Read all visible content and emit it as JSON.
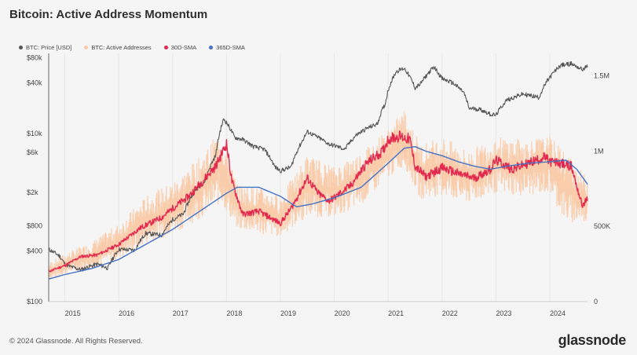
{
  "chart_data": {
    "type": "line",
    "title": "Bitcoin: Active Address Momentum",
    "legend": [
      {
        "name": "BTC: Price [USD]",
        "color": "#555555"
      },
      {
        "name": "BTC: Active Addresses",
        "color": "#f9c9a4"
      },
      {
        "name": "30D-SMA",
        "color": "#e2284f"
      },
      {
        "name": "365D-SMA",
        "color": "#4472c4"
      }
    ],
    "x_range": [
      2014.7,
      2024.7
    ],
    "x_ticks": [
      {
        "v": 2015,
        "label": "2015"
      },
      {
        "v": 2016,
        "label": "2016"
      },
      {
        "v": 2017,
        "label": "2017"
      },
      {
        "v": 2018,
        "label": "2018"
      },
      {
        "v": 2019,
        "label": "2019"
      },
      {
        "v": 2020,
        "label": "2020"
      },
      {
        "v": 2021,
        "label": "2021"
      },
      {
        "v": 2022,
        "label": "2022"
      },
      {
        "v": 2023,
        "label": "2023"
      },
      {
        "v": 2024,
        "label": "2024"
      }
    ],
    "y_left": {
      "scale": "log",
      "range": [
        100,
        90000
      ],
      "ticks": [
        {
          "v": 80000,
          "label": "$80k"
        },
        {
          "v": 40000,
          "label": "$40k"
        },
        {
          "v": 10000,
          "label": "$10k"
        },
        {
          "v": 6000,
          "label": "$6k"
        },
        {
          "v": 2000,
          "label": "$2k"
        },
        {
          "v": 800,
          "label": "$800"
        },
        {
          "v": 400,
          "label": "$400"
        },
        {
          "v": 100,
          "label": "$100"
        }
      ]
    },
    "y_right": {
      "scale": "linear",
      "range": [
        0,
        1650000
      ],
      "ticks": [
        {
          "v": 1500000,
          "label": "1.5M"
        },
        {
          "v": 1000000,
          "label": "1M"
        },
        {
          "v": 500000,
          "label": "500K"
        },
        {
          "v": 0,
          "label": "0"
        }
      ]
    },
    "series": [
      {
        "name": "BTC: Price [USD]",
        "axis": "left",
        "x": [
          2014.7,
          2014.9,
          2015.0,
          2015.1,
          2015.3,
          2015.6,
          2015.8,
          2016.0,
          2016.3,
          2016.5,
          2016.8,
          2017.0,
          2017.2,
          2017.4,
          2017.6,
          2017.8,
          2017.95,
          2018.05,
          2018.15,
          2018.3,
          2018.5,
          2018.7,
          2018.9,
          2019.0,
          2019.2,
          2019.4,
          2019.5,
          2019.7,
          2019.9,
          2020.0,
          2020.2,
          2020.4,
          2020.6,
          2020.8,
          2020.95,
          2021.0,
          2021.15,
          2021.3,
          2021.5,
          2021.6,
          2021.85,
          2022.0,
          2022.2,
          2022.4,
          2022.5,
          2022.7,
          2022.9,
          2023.0,
          2023.2,
          2023.5,
          2023.8,
          2023.95,
          2024.2,
          2024.4,
          2024.6,
          2024.7
        ],
        "values": [
          420,
          350,
          280,
          260,
          240,
          280,
          250,
          420,
          410,
          650,
          620,
          950,
          1100,
          2000,
          2700,
          5500,
          15000,
          12000,
          9000,
          8500,
          7000,
          6500,
          4000,
          3600,
          4000,
          8000,
          10500,
          9000,
          7500,
          7200,
          6500,
          9500,
          11500,
          13000,
          23000,
          33000,
          55000,
          60000,
          35000,
          39000,
          62000,
          45000,
          40000,
          31000,
          20000,
          19500,
          17000,
          16500,
          25000,
          29500,
          27000,
          42000,
          65000,
          68000,
          58000,
          63000
        ]
      },
      {
        "name": "30D-SMA",
        "axis": "right",
        "x": [
          2014.7,
          2015.0,
          2015.3,
          2015.6,
          2016.0,
          2016.4,
          2016.8,
          2017.0,
          2017.3,
          2017.6,
          2017.8,
          2018.0,
          2018.1,
          2018.3,
          2018.6,
          2018.9,
          2019.0,
          2019.2,
          2019.5,
          2019.7,
          2019.9,
          2020.0,
          2020.3,
          2020.6,
          2020.9,
          2021.0,
          2021.2,
          2021.4,
          2021.5,
          2021.7,
          2022.0,
          2022.3,
          2022.6,
          2022.9,
          2023.0,
          2023.3,
          2023.6,
          2023.9,
          2024.0,
          2024.2,
          2024.4,
          2024.6,
          2024.7
        ],
        "values": [
          200000,
          240000,
          300000,
          310000,
          380000,
          490000,
          560000,
          620000,
          700000,
          820000,
          900000,
          1050000,
          800000,
          580000,
          600000,
          540000,
          520000,
          620000,
          820000,
          720000,
          670000,
          690000,
          770000,
          920000,
          1000000,
          1080000,
          1100000,
          1080000,
          900000,
          830000,
          890000,
          850000,
          820000,
          880000,
          940000,
          880000,
          920000,
          960000,
          930000,
          920000,
          900000,
          640000,
          680000
        ]
      },
      {
        "name": "365D-SMA",
        "axis": "right",
        "x": [
          2014.7,
          2015.0,
          2015.5,
          2016.0,
          2016.5,
          2017.0,
          2017.5,
          2018.0,
          2018.2,
          2018.6,
          2019.0,
          2019.3,
          2019.6,
          2020.0,
          2020.5,
          2021.0,
          2021.3,
          2021.5,
          2021.7,
          2022.0,
          2022.3,
          2022.6,
          2022.9,
          2023.2,
          2023.6,
          2024.0,
          2024.3,
          2024.5,
          2024.7
        ],
        "values": [
          150000,
          180000,
          220000,
          280000,
          380000,
          480000,
          600000,
          720000,
          760000,
          760000,
          700000,
          630000,
          650000,
          690000,
          760000,
          920000,
          1020000,
          1030000,
          1000000,
          970000,
          930000,
          900000,
          880000,
          900000,
          920000,
          930000,
          940000,
          880000,
          780000
        ]
      }
    ],
    "active_addresses_band": {
      "name": "BTC: Active Addresses",
      "axis": "right",
      "x": [
        2014.7,
        2015.0,
        2015.5,
        2016.0,
        2016.5,
        2017.0,
        2017.5,
        2017.9,
        2018.2,
        2018.6,
        2019.0,
        2019.5,
        2020.0,
        2020.5,
        2021.0,
        2021.3,
        2021.6,
        2022.0,
        2022.5,
        2023.0,
        2023.5,
        2024.0,
        2024.3,
        2024.7
      ],
      "low": [
        140000,
        180000,
        220000,
        280000,
        380000,
        450000,
        550000,
        650000,
        480000,
        450000,
        430000,
        560000,
        560000,
        640000,
        820000,
        900000,
        680000,
        700000,
        650000,
        720000,
        700000,
        720000,
        520000,
        520000
      ],
      "high": [
        260000,
        320000,
        400000,
        520000,
        700000,
        800000,
        960000,
        1150000,
        780000,
        760000,
        700000,
        980000,
        900000,
        1000000,
        1150000,
        1280000,
        1050000,
        1100000,
        1000000,
        1100000,
        1080000,
        1100000,
        1000000,
        820000
      ]
    }
  },
  "footer": "© 2024 Glassnode. All Rights Reserved.",
  "logo": "glassnode"
}
